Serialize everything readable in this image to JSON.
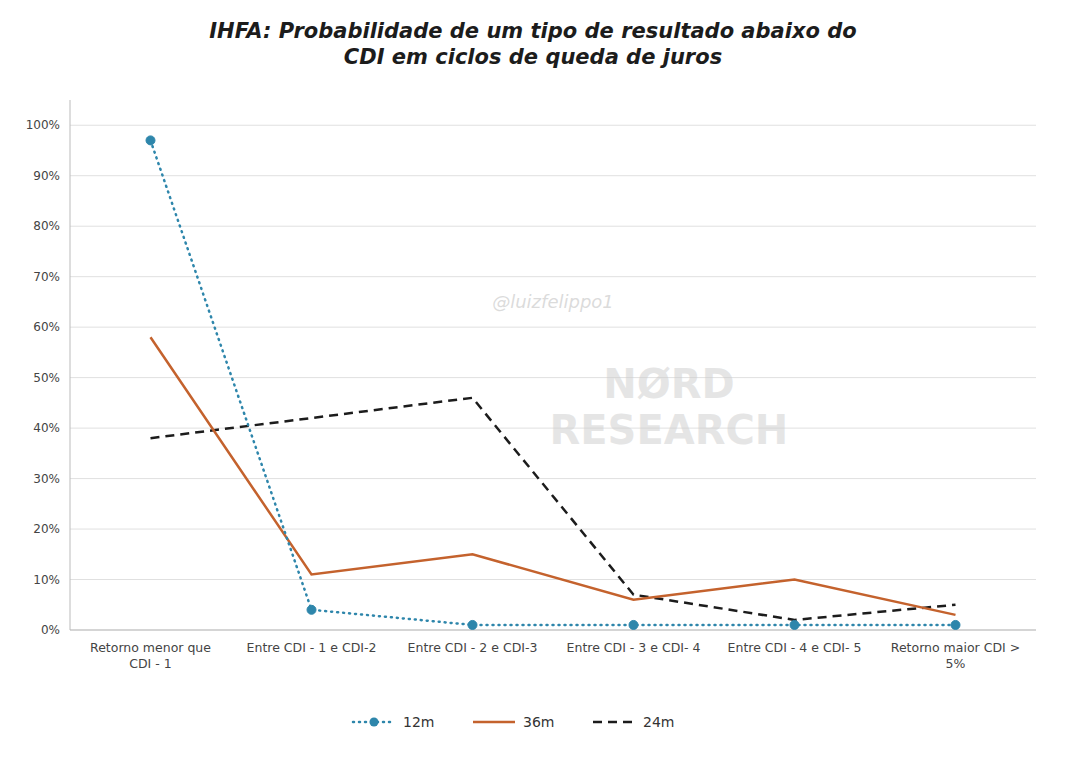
{
  "chart_data": {
    "type": "line",
    "title": "IHFA: Probabilidade de um tipo de resultado abaixo do\nCDI em ciclos de queda de juros",
    "categories": [
      "Retorno menor que\nCDI - 1",
      "Entre CDI - 1 e CDI-2",
      "Entre CDI - 2 e CDI-3",
      "Entre CDI - 3 e CDI- 4",
      "Entre CDI - 4 e CDI- 5",
      "Retorno maior CDI >\n5%"
    ],
    "series": [
      {
        "name": "12m",
        "color": "#2E86AB",
        "line_style": "dotted",
        "marker": "circle",
        "values": [
          0.97,
          0.04,
          0.01,
          0.01,
          0.01,
          0.01
        ]
      },
      {
        "name": "36m",
        "color": "#C4622D",
        "line_style": "solid",
        "values": [
          0.58,
          0.11,
          0.15,
          0.06,
          0.1,
          0.03
        ]
      },
      {
        "name": "24m",
        "color": "#1C1C1C",
        "line_style": "dashed",
        "values": [
          0.38,
          0.42,
          0.46,
          0.07,
          0.02,
          0.05
        ]
      }
    ],
    "ylim": [
      0,
      1.05
    ],
    "yticks": [
      {
        "value": 0,
        "label": "0%"
      },
      {
        "value": 0.1,
        "label": "10%"
      },
      {
        "value": 0.2,
        "label": "20%"
      },
      {
        "value": 0.3,
        "label": "30%"
      },
      {
        "value": 0.4,
        "label": "40%"
      },
      {
        "value": 0.5,
        "label": "50%"
      },
      {
        "value": 0.6,
        "label": "60%"
      },
      {
        "value": 0.7,
        "label": "70%"
      },
      {
        "value": 0.8,
        "label": "80%"
      },
      {
        "value": 0.9,
        "label": "90%"
      },
      {
        "value": 1.0,
        "label": "100%"
      }
    ],
    "annotations": [
      "@luizfelippo1",
      "NØRD\nRESEARCH"
    ],
    "grid": true,
    "legend": "bottom"
  }
}
